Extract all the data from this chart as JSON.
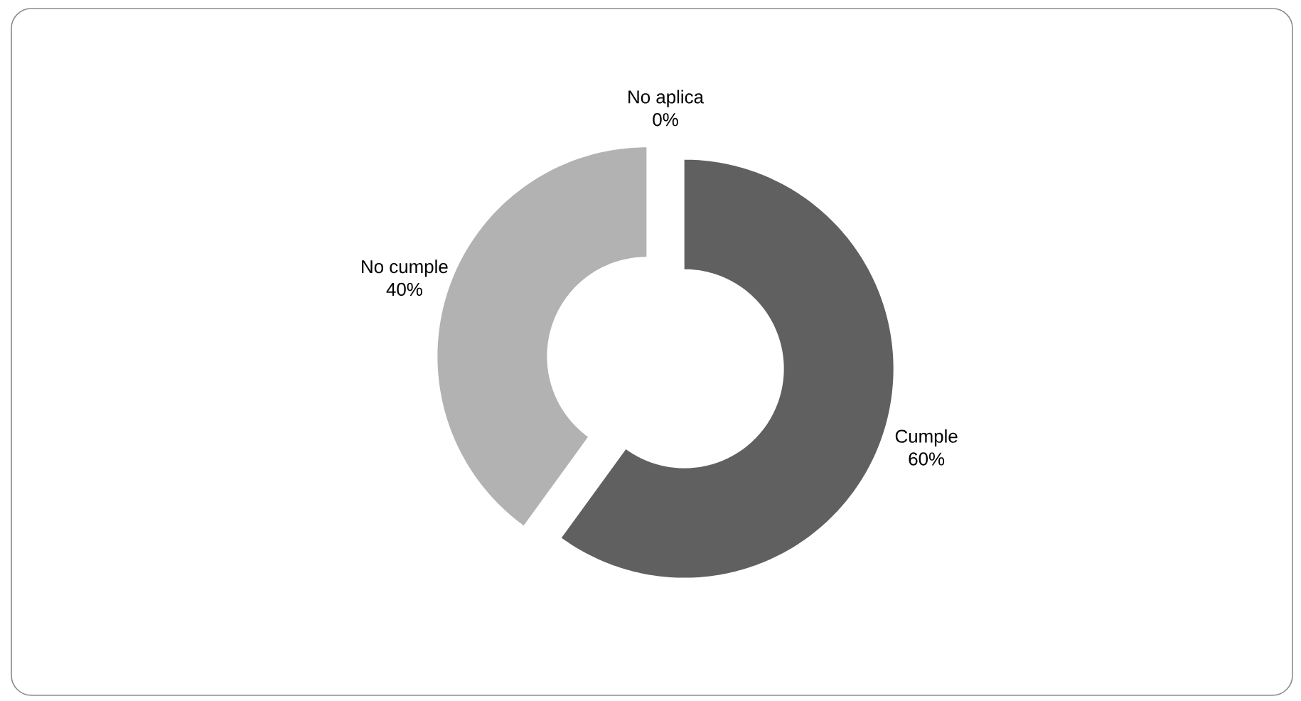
{
  "chart_data": {
    "type": "donut",
    "categories": [
      "Cumple",
      "No cumple",
      "No aplica"
    ],
    "values": [
      60,
      40,
      0
    ],
    "colors": [
      "#606060",
      "#b2b2b2",
      "#d9d9d9"
    ],
    "value_labels": [
      "60%",
      "40%",
      "0%"
    ]
  }
}
